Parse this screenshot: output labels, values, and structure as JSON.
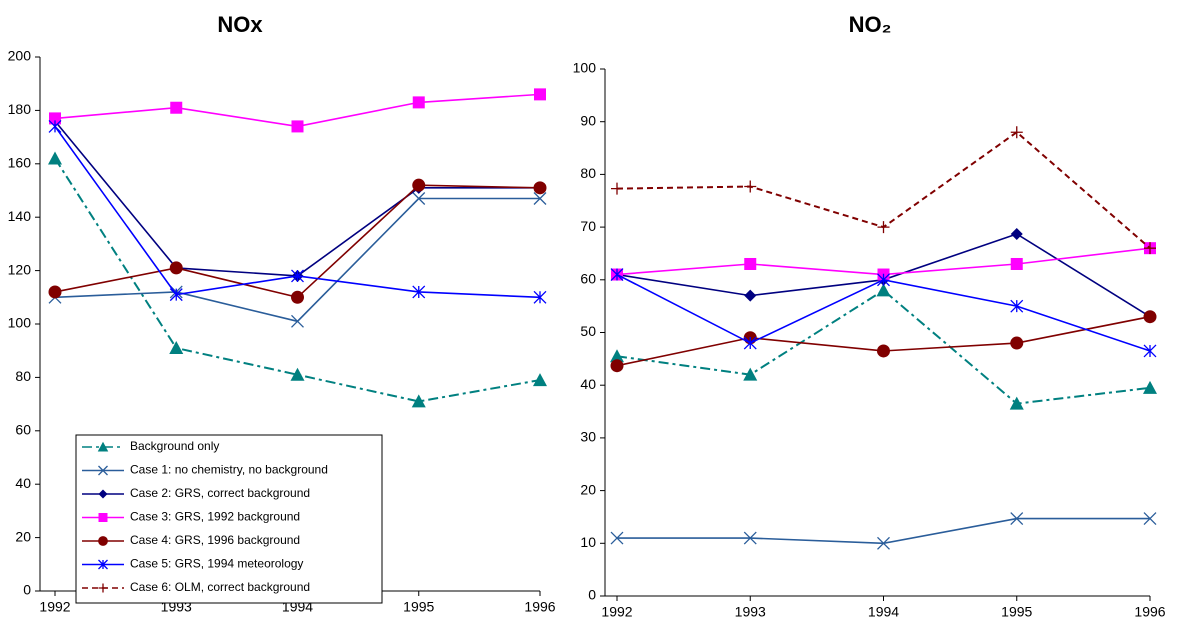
{
  "chart_data": [
    {
      "type": "line",
      "title": "NOx",
      "categories": [
        "1992",
        "1993",
        "1994",
        "1995",
        "1996"
      ],
      "ylim": [
        0,
        200
      ],
      "yticks": [
        0,
        20,
        40,
        60,
        80,
        100,
        120,
        140,
        160,
        180,
        200
      ],
      "legend": true,
      "series": [
        {
          "name": "Background only",
          "color": "#008080",
          "marker": "triangle",
          "dash": "dashdot",
          "values": [
            162,
            91,
            81,
            71,
            79
          ]
        },
        {
          "name": "Case 1: no chemistry, no background",
          "color": "#2a5d9a",
          "marker": "x",
          "dash": "solid",
          "values": [
            110,
            112,
            101,
            147,
            147
          ]
        },
        {
          "name": "Case 2: GRS, correct background",
          "color": "#000080",
          "marker": "diamond",
          "dash": "solid",
          "values": [
            176,
            121,
            118,
            151,
            151
          ]
        },
        {
          "name": "Case 3: GRS, 1992 background",
          "color": "#ff00ff",
          "marker": "square",
          "dash": "solid",
          "values": [
            177,
            181,
            174,
            183,
            186
          ]
        },
        {
          "name": "Case 4: GRS, 1996 background",
          "color": "#800000",
          "marker": "circle",
          "dash": "solid",
          "values": [
            112,
            121,
            110,
            152,
            151
          ]
        },
        {
          "name": "Case 5: GRS, 1994 meteorology",
          "color": "#0000ff",
          "marker": "asterisk",
          "dash": "solid",
          "values": [
            174,
            111,
            118,
            112,
            110
          ]
        },
        {
          "name": "Case 6: OLM, correct background",
          "color": "#800000",
          "marker": "plus",
          "dash": "dash",
          "values": [
            null,
            null,
            null,
            null,
            null
          ]
        }
      ]
    },
    {
      "type": "line",
      "title": "NO₂",
      "categories": [
        "1992",
        "1993",
        "1994",
        "1995",
        "1996"
      ],
      "ylim": [
        0,
        100
      ],
      "yticks": [
        0,
        10,
        20,
        30,
        40,
        50,
        60,
        70,
        80,
        90,
        100
      ],
      "legend": false,
      "series": [
        {
          "name": "Background only",
          "color": "#008080",
          "marker": "triangle",
          "dash": "dashdot",
          "values": [
            45.5,
            42,
            58,
            36.5,
            39.5
          ]
        },
        {
          "name": "Case 1: no chemistry, no background",
          "color": "#2a5d9a",
          "marker": "x",
          "dash": "solid",
          "values": [
            11,
            11,
            10,
            14.7,
            14.7
          ]
        },
        {
          "name": "Case 2: GRS, correct background",
          "color": "#000080",
          "marker": "diamond",
          "dash": "solid",
          "values": [
            61,
            57,
            60,
            68.7,
            53
          ]
        },
        {
          "name": "Case 3: GRS, 1992 background",
          "color": "#ff00ff",
          "marker": "square",
          "dash": "solid",
          "values": [
            61,
            63,
            61,
            63,
            66
          ]
        },
        {
          "name": "Case 4: GRS, 1996 background",
          "color": "#800000",
          "marker": "circle",
          "dash": "solid",
          "values": [
            43.7,
            49,
            46.5,
            48,
            53
          ]
        },
        {
          "name": "Case 5: GRS, 1994 meteorology",
          "color": "#0000ff",
          "marker": "asterisk",
          "dash": "solid",
          "values": [
            61,
            48,
            60,
            55,
            46.5
          ]
        },
        {
          "name": "Case 6: OLM, correct background",
          "color": "#800000",
          "marker": "plus",
          "dash": "dash",
          "values": [
            77.3,
            77.7,
            70,
            88,
            66
          ]
        }
      ]
    }
  ]
}
